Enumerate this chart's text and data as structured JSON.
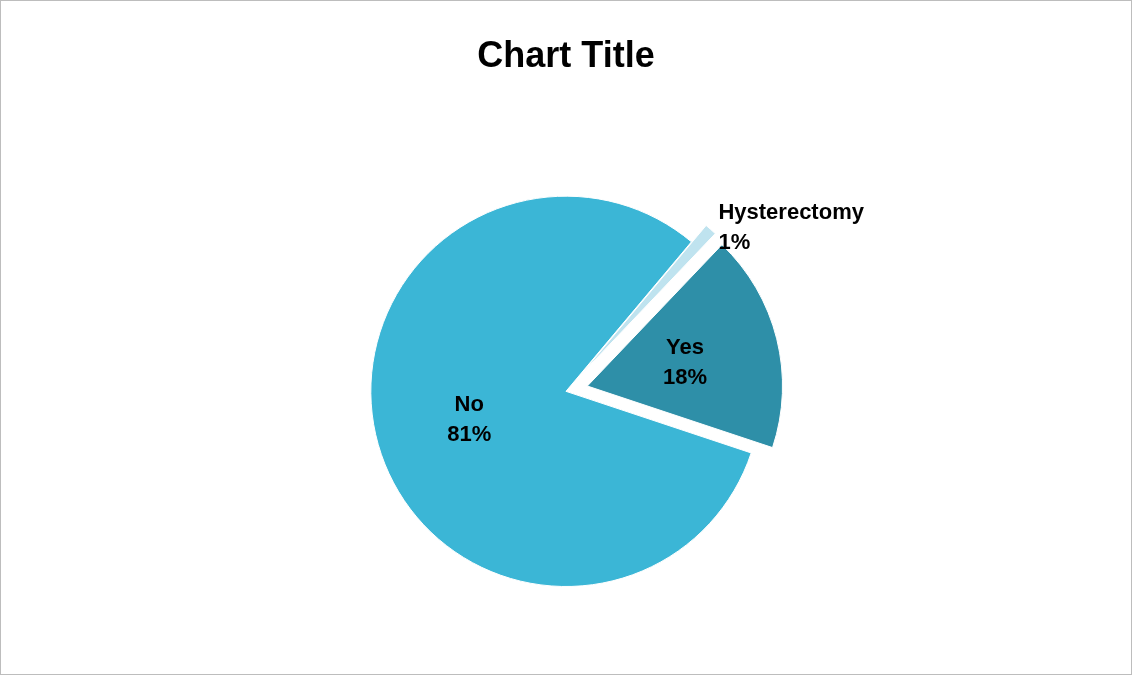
{
  "chart_data": {
    "type": "pie",
    "title": "Chart Title",
    "categories": [
      "Hysterectomy",
      "Yes",
      "No"
    ],
    "values": [
      1,
      18,
      81
    ],
    "value_labels": [
      "1%",
      "18%",
      "81%"
    ],
    "colors": [
      "#bfe3ef",
      "#2e8fa8",
      "#3bb6d6"
    ]
  }
}
